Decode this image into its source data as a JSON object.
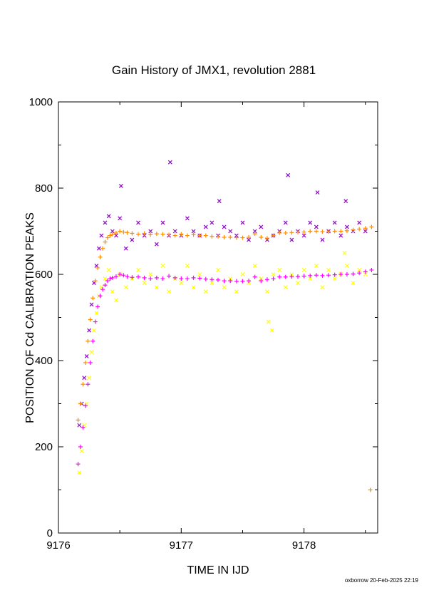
{
  "chart_data": {
    "type": "scatter",
    "title": "Gain History of JMX1, revolution 2881",
    "xlabel": "TIME IN IJD",
    "ylabel": "POSITION OF Cd CALIBRATION PEAKS",
    "xlim": [
      9176.0,
      9178.6
    ],
    "ylim": [
      0,
      1000
    ],
    "xticks": [
      "9176",
      "9177",
      "9178"
    ],
    "yticks": [
      "0",
      "200",
      "400",
      "600",
      "800",
      "1000"
    ],
    "grid": false,
    "legend": "none",
    "footer": "oxborrow 20-Feb-2025 22:19",
    "series": [
      {
        "color": "#9400d3",
        "marker": "x",
        "x": [
          9176.17,
          9176.19,
          9176.21,
          9176.23,
          9176.25,
          9176.27,
          9176.29,
          9176.31,
          9176.33,
          9176.35,
          9176.38,
          9176.41,
          9176.44,
          9176.47,
          9176.5,
          9176.55,
          9176.6,
          9176.65,
          9176.7,
          9176.75,
          9176.8,
          9176.85,
          9176.9,
          9176.95,
          9177.0,
          9177.05,
          9177.1,
          9177.15,
          9177.2,
          9177.25,
          9177.3,
          9177.35,
          9177.4,
          9177.45,
          9177.5,
          9177.55,
          9177.6,
          9177.65,
          9177.7,
          9177.75,
          9177.8,
          9177.85,
          9177.9,
          9177.95,
          9178.0,
          9178.05,
          9178.1,
          9178.15,
          9178.2,
          9178.25,
          9178.3,
          9178.35,
          9178.4,
          9178.45,
          9178.5,
          9176.51,
          9176.91,
          9177.31,
          9177.87,
          9178.11,
          9178.34
        ],
        "y": [
          250,
          300,
          360,
          410,
          470,
          530,
          580,
          620,
          660,
          690,
          720,
          735,
          700,
          690,
          730,
          660,
          680,
          720,
          690,
          700,
          670,
          720,
          690,
          700,
          690,
          730,
          700,
          690,
          710,
          720,
          690,
          710,
          700,
          690,
          720,
          680,
          700,
          710,
          680,
          690,
          700,
          720,
          680,
          700,
          690,
          720,
          710,
          680,
          700,
          720,
          690,
          710,
          700,
          720,
          700,
          805,
          860,
          770,
          830,
          790,
          770
        ]
      },
      {
        "color": "#ffff00",
        "marker": "x",
        "x": [
          9176.17,
          9176.19,
          9176.21,
          9176.23,
          9176.25,
          9176.27,
          9176.29,
          9176.31,
          9176.33,
          9176.35,
          9176.38,
          9176.41,
          9176.44,
          9176.47,
          9176.5,
          9176.55,
          9176.6,
          9176.65,
          9176.7,
          9176.75,
          9176.8,
          9176.85,
          9176.9,
          9176.95,
          9177.0,
          9177.05,
          9177.1,
          9177.15,
          9177.2,
          9177.25,
          9177.3,
          9177.35,
          9177.4,
          9177.45,
          9177.5,
          9177.55,
          9177.6,
          9177.65,
          9177.7,
          9177.75,
          9177.8,
          9177.85,
          9177.9,
          9177.95,
          9178.0,
          9178.05,
          9178.1,
          9178.15,
          9178.2,
          9178.25,
          9178.3,
          9178.35,
          9178.4,
          9178.45,
          9178.5,
          9177.71,
          9177.74,
          9178.33
        ],
        "y": [
          140,
          190,
          250,
          300,
          360,
          420,
          470,
          510,
          550,
          570,
          590,
          610,
          560,
          540,
          600,
          570,
          590,
          610,
          580,
          600,
          570,
          620,
          560,
          590,
          580,
          620,
          570,
          600,
          560,
          580,
          610,
          570,
          590,
          560,
          600,
          580,
          620,
          590,
          560,
          600,
          610,
          570,
          600,
          580,
          610,
          590,
          620,
          570,
          610,
          590,
          600,
          620,
          580,
          610,
          600,
          490,
          470,
          650
        ]
      },
      {
        "color": "#ff8c00",
        "marker": "+",
        "x": [
          9176.16,
          9176.18,
          9176.2,
          9176.22,
          9176.24,
          9176.26,
          9176.28,
          9176.3,
          9176.32,
          9176.34,
          9176.36,
          9176.38,
          9176.4,
          9176.42,
          9176.44,
          9176.47,
          9176.5,
          9176.53,
          9176.56,
          9176.6,
          9176.65,
          9176.7,
          9176.75,
          9176.8,
          9176.85,
          9176.9,
          9176.95,
          9177.0,
          9177.05,
          9177.1,
          9177.15,
          9177.2,
          9177.25,
          9177.3,
          9177.35,
          9177.4,
          9177.45,
          9177.5,
          9177.55,
          9177.6,
          9177.65,
          9177.7,
          9177.75,
          9177.8,
          9177.85,
          9177.9,
          9177.95,
          9178.0,
          9178.05,
          9178.1,
          9178.15,
          9178.2,
          9178.25,
          9178.3,
          9178.35,
          9178.4,
          9178.45,
          9178.5,
          9178.55,
          9178.54
        ],
        "y": [
          262,
          300,
          345,
          395,
          445,
          495,
          545,
          585,
          615,
          640,
          660,
          675,
          685,
          690,
          693,
          696,
          700,
          698,
          697,
          695,
          693,
          695,
          692,
          694,
          693,
          692,
          690,
          693,
          690,
          692,
          690,
          690,
          688,
          688,
          686,
          686,
          685,
          685,
          686,
          694,
          686,
          684,
          690,
          696,
          696,
          697,
          698,
          698,
          700,
          700,
          699,
          699,
          700,
          700,
          701,
          703,
          705,
          707,
          710,
          100
        ]
      },
      {
        "color": "#ff00ff",
        "marker": "+",
        "x": [
          9176.16,
          9176.18,
          9176.2,
          9176.22,
          9176.24,
          9176.26,
          9176.28,
          9176.3,
          9176.32,
          9176.34,
          9176.36,
          9176.38,
          9176.4,
          9176.42,
          9176.44,
          9176.47,
          9176.5,
          9176.53,
          9176.56,
          9176.6,
          9176.65,
          9176.7,
          9176.75,
          9176.8,
          9176.85,
          9176.9,
          9176.95,
          9177.0,
          9177.05,
          9177.1,
          9177.15,
          9177.2,
          9177.25,
          9177.3,
          9177.35,
          9177.4,
          9177.45,
          9177.5,
          9177.55,
          9177.6,
          9177.65,
          9177.7,
          9177.75,
          9177.8,
          9177.85,
          9177.9,
          9177.95,
          9178.0,
          9178.05,
          9178.1,
          9178.15,
          9178.2,
          9178.25,
          9178.3,
          9178.35,
          9178.4,
          9178.45,
          9178.5,
          9178.55
        ],
        "y": [
          160,
          200,
          245,
          295,
          345,
          395,
          445,
          490,
          525,
          550,
          565,
          575,
          585,
          590,
          592,
          595,
          600,
          598,
          595,
          593,
          594,
          592,
          590,
          592,
          590,
          596,
          592,
          590,
          590,
          592,
          591,
          589,
          588,
          587,
          585,
          585,
          584,
          584,
          585,
          594,
          585,
          588,
          590,
          594,
          594,
          595,
          595,
          596,
          597,
          598,
          597,
          598,
          599,
          600,
          600,
          601,
          603,
          606,
          610
        ]
      }
    ]
  }
}
